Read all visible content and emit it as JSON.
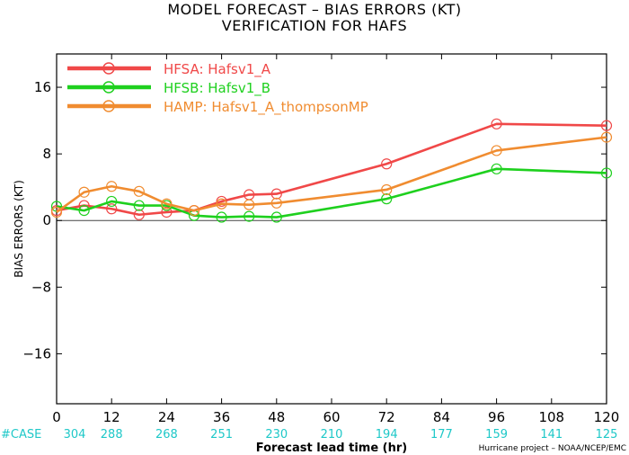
{
  "title": "MODEL FORECAST – BIAS ERRORS (KT)",
  "subtitle": "VERIFICATION FOR HAFS",
  "credit": "Hurricane project – NOAA/NCEP/EMC",
  "case_label": "#CASE",
  "case_counts": [
    304,
    288,
    268,
    251,
    230,
    210,
    194,
    177,
    159,
    141,
    125
  ],
  "case_color": "#1ec8c8",
  "chart_data": {
    "type": "line",
    "title": "MODEL FORECAST – BIAS ERRORS (KT)",
    "subtitle": "VERIFICATION FOR HAFS",
    "xlabel": "Forecast lead time (hr)",
    "ylabel": "BIAS ERRORS (KT)",
    "xlim": [
      0,
      120
    ],
    "ylim": [
      -22,
      20
    ],
    "xticks": [
      0,
      12,
      24,
      36,
      48,
      60,
      72,
      84,
      96,
      108,
      120
    ],
    "yticks": [
      -16,
      -8,
      0,
      8,
      16
    ],
    "legend_position": "top-left",
    "grid": false,
    "zero_line": true,
    "series": [
      {
        "name": "HFSA: Hafsv1_A",
        "color": "#f04848",
        "x": [
          0,
          6,
          12,
          18,
          24,
          30,
          36,
          42,
          48,
          72,
          96,
          120
        ],
        "y": [
          1.2,
          1.8,
          1.4,
          0.7,
          1.0,
          1.2,
          2.3,
          3.1,
          3.2,
          6.8,
          11.6,
          11.4
        ]
      },
      {
        "name": "HFSB: Hafsv1_B",
        "color": "#1ed01e",
        "x": [
          0,
          6,
          12,
          18,
          24,
          30,
          36,
          42,
          48,
          72,
          96,
          120
        ],
        "y": [
          1.7,
          1.2,
          2.3,
          1.8,
          1.8,
          0.6,
          0.4,
          0.5,
          0.4,
          2.6,
          6.2,
          5.7
        ]
      },
      {
        "name": "HAMP: Hafsv1_A_thompsonMP",
        "color": "#f08c30",
        "x": [
          0,
          6,
          12,
          18,
          24,
          30,
          36,
          42,
          48,
          72,
          96,
          120
        ],
        "y": [
          1.0,
          3.4,
          4.1,
          3.5,
          2.0,
          1.2,
          2.0,
          1.9,
          2.1,
          3.7,
          8.4,
          10.0
        ]
      }
    ]
  }
}
